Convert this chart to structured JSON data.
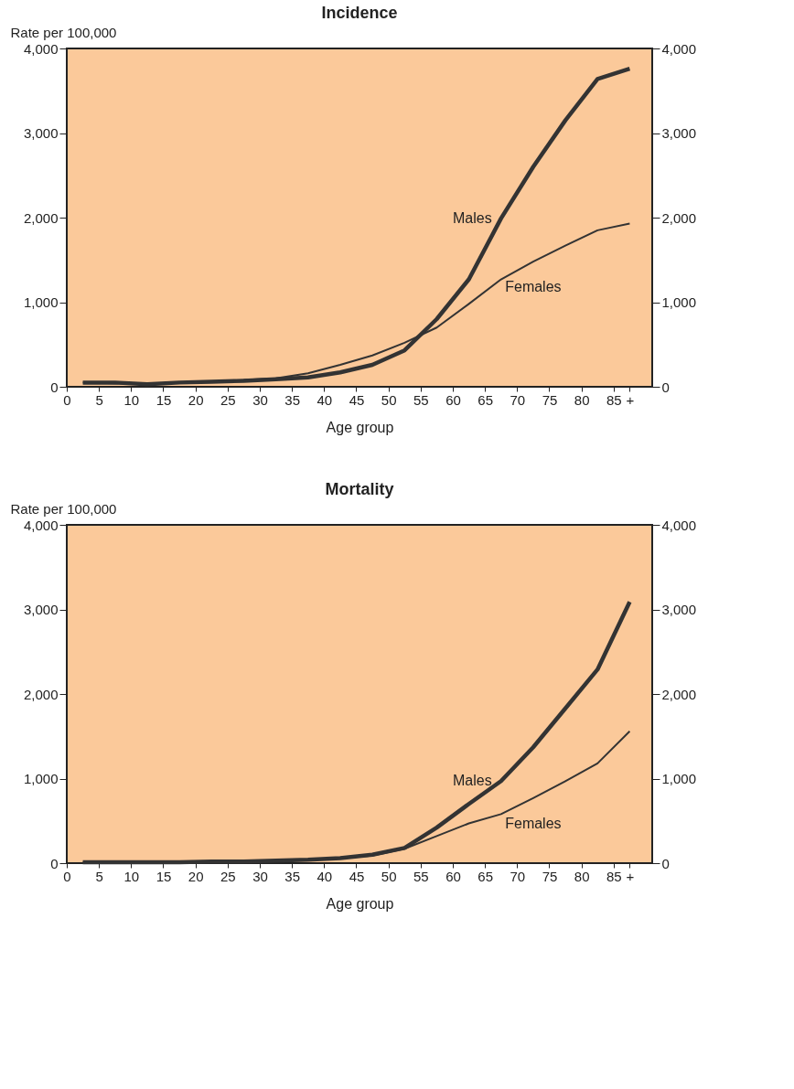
{
  "chart_data": [
    {
      "type": "line",
      "title": "Incidence",
      "xlabel": "Age group",
      "ylabel": "Rate per 100,000",
      "x": [
        2.5,
        7.5,
        12.5,
        17.5,
        22.5,
        27.5,
        32.5,
        37.5,
        42.5,
        47.5,
        52.5,
        57.5,
        62.5,
        67.5,
        72.5,
        77.5,
        82.5,
        87.5
      ],
      "series": [
        {
          "name": "Males",
          "color": "#333333",
          "values": [
            50,
            50,
            30,
            50,
            60,
            70,
            90,
            110,
            170,
            260,
            430,
            800,
            1270,
            1990,
            2600,
            3150,
            3640,
            3760
          ]
        },
        {
          "name": "Females",
          "color": "#333333",
          "values": [
            50,
            40,
            30,
            50,
            60,
            80,
            100,
            160,
            260,
            370,
            520,
            700,
            980,
            1270,
            1480,
            1670,
            1850,
            1930
          ]
        }
      ],
      "xlim": [
        0,
        91
      ],
      "xticks": [
        0,
        5,
        10,
        15,
        20,
        25,
        30,
        35,
        40,
        45,
        50,
        55,
        60,
        65,
        70,
        75,
        80,
        85,
        {
          "value": 87.5,
          "label": "+"
        }
      ],
      "ylim": [
        0,
        4000
      ],
      "yticks": [
        {
          "value": 0,
          "label": "0"
        },
        {
          "value": 1000,
          "label": "1,000"
        },
        {
          "value": 2000,
          "label": "2,000"
        },
        {
          "value": 3000,
          "label": "3,000"
        },
        {
          "value": 4000,
          "label": "4,000"
        }
      ],
      "y2lim": [
        0,
        4000
      ],
      "y2ticks": [
        {
          "value": 0,
          "label": "0"
        },
        {
          "value": 1000,
          "label": "1,000"
        },
        {
          "value": 2000,
          "label": "2,000"
        },
        {
          "value": 3000,
          "label": "3,000"
        },
        {
          "value": 4000,
          "label": "4,000"
        }
      ],
      "grid": false,
      "marker": "none",
      "line_style": "solid"
    },
    {
      "type": "line",
      "title": "Mortality",
      "xlabel": "Age group",
      "ylabel": "Rate per 100,000",
      "x": [
        2.5,
        7.5,
        12.5,
        17.5,
        22.5,
        27.5,
        32.5,
        37.5,
        42.5,
        47.5,
        52.5,
        57.5,
        62.5,
        67.5,
        72.5,
        77.5,
        82.5,
        87.5
      ],
      "series": [
        {
          "name": "Males",
          "color": "#333333",
          "values": [
            10,
            10,
            10,
            10,
            20,
            20,
            30,
            40,
            60,
            100,
            180,
            420,
            700,
            970,
            1370,
            1830,
            2290,
            3090
          ]
        },
        {
          "name": "Females",
          "color": "#333333",
          "values": [
            10,
            10,
            10,
            10,
            20,
            20,
            30,
            40,
            60,
            90,
            170,
            320,
            470,
            580,
            770,
            970,
            1180,
            1560
          ]
        }
      ],
      "xlim": [
        0,
        91
      ],
      "xticks": [
        0,
        5,
        10,
        15,
        20,
        25,
        30,
        35,
        40,
        45,
        50,
        55,
        60,
        65,
        70,
        75,
        80,
        85,
        {
          "value": 87.5,
          "label": "+"
        }
      ],
      "ylim": [
        0,
        4000
      ],
      "yticks": [
        {
          "value": 0,
          "label": "0"
        },
        {
          "value": 1000,
          "label": "1,000"
        },
        {
          "value": 2000,
          "label": "2,000"
        },
        {
          "value": 3000,
          "label": "3,000"
        },
        {
          "value": 4000,
          "label": "4,000"
        }
      ],
      "y2lim": [
        0,
        4000
      ],
      "y2ticks": [
        {
          "value": 0,
          "label": "0"
        },
        {
          "value": 1000,
          "label": "1,000"
        },
        {
          "value": 2000,
          "label": "2,000"
        },
        {
          "value": 3000,
          "label": "3,000"
        },
        {
          "value": 4000,
          "label": "4,000"
        }
      ],
      "grid": false,
      "marker": "none",
      "line_style": "solid"
    }
  ]
}
